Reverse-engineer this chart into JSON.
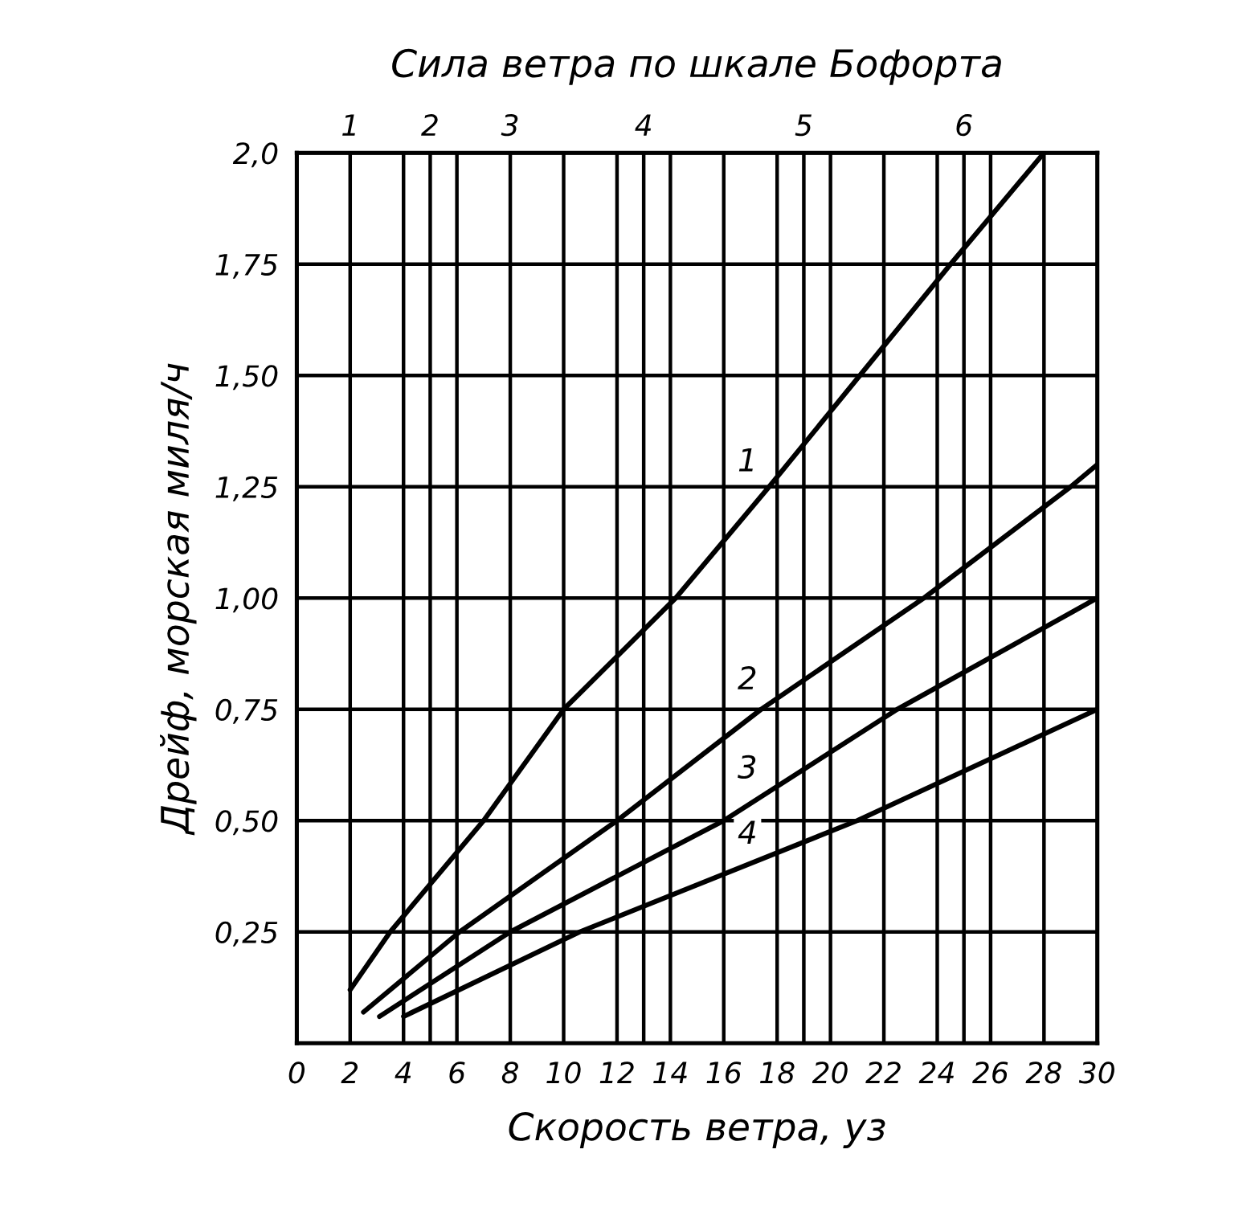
{
  "chart_data": {
    "type": "line",
    "title": "Сила ветра по шкале Бофорта",
    "xlabel": "Скорость ветра, уз",
    "ylabel": "Дрейф, морская миля/ч",
    "xlim": [
      0,
      30
    ],
    "xticks": [
      0,
      2,
      4,
      6,
      8,
      10,
      12,
      14,
      16,
      18,
      20,
      22,
      24,
      26,
      28,
      30
    ],
    "ylim": [
      0,
      2.0
    ],
    "yticks": [
      {
        "value": 0.25,
        "label": "0,25"
      },
      {
        "value": 0.5,
        "label": "0,50"
      },
      {
        "value": 0.75,
        "label": "0,75"
      },
      {
        "value": 1.0,
        "label": "1,00"
      },
      {
        "value": 1.25,
        "label": "1,25"
      },
      {
        "value": 1.5,
        "label": "1,50"
      },
      {
        "value": 1.75,
        "label": "1,75"
      },
      {
        "value": 2.0,
        "label": "2,0"
      }
    ],
    "ref_lines": [
      {
        "axis": "x",
        "value": 5
      },
      {
        "axis": "x",
        "value": 13
      },
      {
        "axis": "x",
        "value": 19
      },
      {
        "axis": "x",
        "value": 25
      }
    ],
    "annotations": [
      "1",
      {
        "text": "2",
        "x": 5,
        "y": 2.0
      },
      "3",
      {
        "text": "4",
        "x": 13,
        "y": 2.0
      },
      {
        "text": "5",
        "x": 19,
        "y": 2.0
      },
      {
        "text": "6",
        "x": 25,
        "y": 2.0
      }
    ],
    "grid": true,
    "marker": "none",
    "line_style": "solid",
    "series": [
      {
        "name": "1",
        "color": "#000000",
        "x": [
          2,
          3.5,
          7,
          10,
          14.2,
          17.7,
          21.1,
          24.5,
          28
        ],
        "values": [
          0.12,
          0.25,
          0.5,
          0.75,
          1.0,
          1.25,
          1.5,
          1.75,
          2.0
        ]
      },
      {
        "name": "2",
        "color": "#000000",
        "x": [
          2.5,
          6.1,
          12,
          17.4,
          23.5,
          29,
          30
        ],
        "values": [
          0.07,
          0.25,
          0.5,
          0.75,
          1.0,
          1.25,
          1.3
        ]
      },
      {
        "name": "3",
        "color": "#000000",
        "x": [
          3.1,
          8,
          16,
          22.5,
          30
        ],
        "values": [
          0.06,
          0.25,
          0.5,
          0.75,
          1.0
        ]
      },
      {
        "name": "4",
        "color": "#000000",
        "x": [
          4,
          10.6,
          21,
          30
        ],
        "values": [
          0.06,
          0.25,
          0.5,
          0.75
        ]
      }
    ]
  }
}
